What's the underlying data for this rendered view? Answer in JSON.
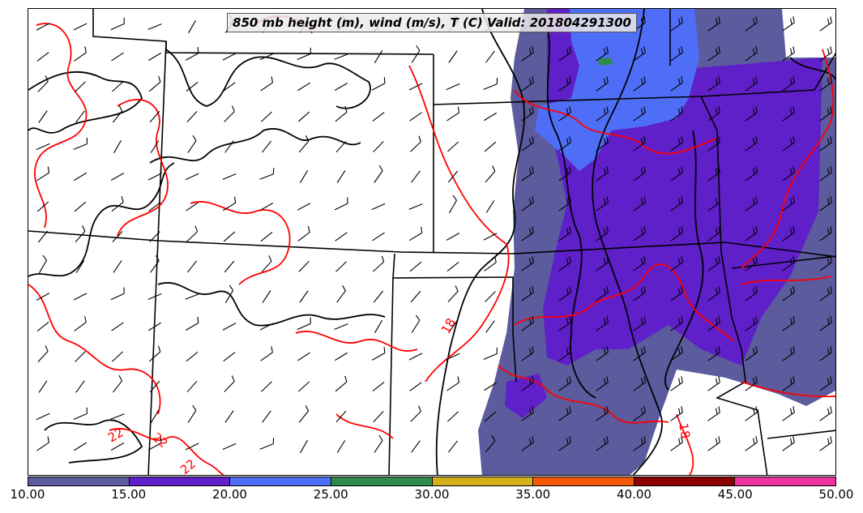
{
  "title": "850 mb height (m), wind (m/s), T (C) Valid: 201804291300",
  "colorbar": {
    "ticks": [
      "10.00",
      "15.00",
      "20.00",
      "25.00",
      "30.00",
      "35.00",
      "40.00",
      "45.00",
      "50.00"
    ],
    "colors": [
      "#5b5b9e",
      "#5f1fc9",
      "#4f6ef7",
      "#2e8b4a",
      "#d4b01a",
      "#f25a0a",
      "#8b0000",
      "#f032a0"
    ]
  },
  "temperature_labels": [
    "18",
    "22",
    "22",
    "22",
    "18"
  ],
  "colors": {
    "height_contour": "#000000",
    "temperature_contour": "#ff0000",
    "wind_barb": "#000000",
    "state_border": "#000000"
  }
}
